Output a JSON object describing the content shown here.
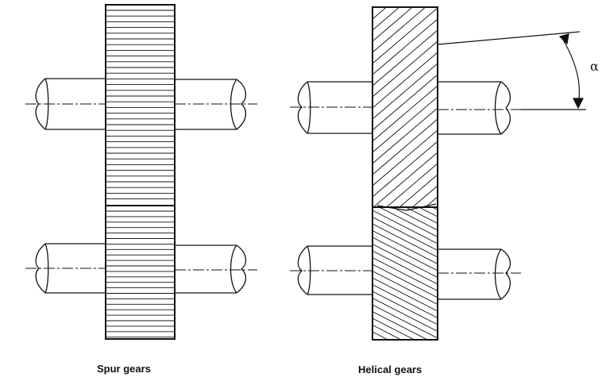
{
  "captions": {
    "spur": "Spur gears",
    "helical": "Helical gears"
  },
  "angle_symbol": "α",
  "colors": {
    "ink": "#111111",
    "background": "#ffffff"
  }
}
